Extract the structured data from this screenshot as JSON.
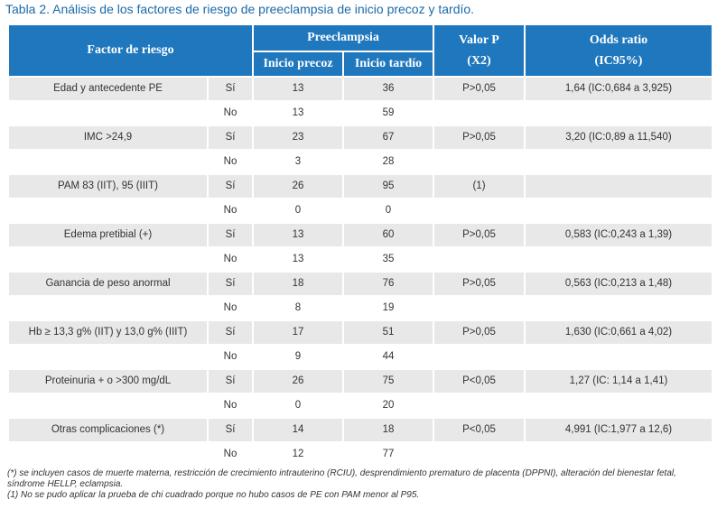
{
  "caption": "Tabla 2. Análisis de los factores de riesgo de preeclampsia de inicio precoz y tardío.",
  "header": {
    "factor": "Factor de riesgo",
    "group": "Preeclampsia",
    "early": "Inicio precoz",
    "late": "Inicio tardío",
    "p_line1": "Valor P",
    "p_line2": "(X2)",
    "or_line1": "Odds ratio",
    "or_line2": "(IC95%)"
  },
  "rows": [
    {
      "factor": "Edad y antecedente PE",
      "yes": {
        "label": "Sí",
        "early": "13",
        "late": "36",
        "p": "P>0,05",
        "or": "1,64 (IC:0,684 a 3,925)"
      },
      "no": {
        "label": "No",
        "early": "13",
        "late": "59"
      }
    },
    {
      "factor": "IMC >24,9",
      "yes": {
        "label": "Sí",
        "early": "23",
        "late": "67",
        "p": "P>0,05",
        "or": "3,20 (IC:0,89 a 11,540)"
      },
      "no": {
        "label": "No",
        "early": "3",
        "late": "28"
      }
    },
    {
      "factor": "PAM  83 (IIT), 95 (IIIT)",
      "yes": {
        "label": "Sí",
        "early": "26",
        "late": "95",
        "p": "(1)",
        "or": ""
      },
      "no": {
        "label": "No",
        "early": "0",
        "late": "0"
      }
    },
    {
      "factor": "Edema pretibial (+)",
      "yes": {
        "label": "Sí",
        "early": "13",
        "late": "60",
        "p": "P>0,05",
        "or": "0,583 (IC:0,243 a 1,39)"
      },
      "no": {
        "label": "No",
        "early": "13",
        "late": "35"
      }
    },
    {
      "factor": "Ganancia de peso anormal",
      "yes": {
        "label": "Sí",
        "early": "18",
        "late": "76",
        "p": "P>0,05",
        "or": "0,563 (IC:0,213 a 1,48)"
      },
      "no": {
        "label": "No",
        "early": "8",
        "late": "19"
      }
    },
    {
      "factor": "Hb ≥ 13,3 g% (IIT) y 13,0 g% (IIIT)",
      "yes": {
        "label": "Sí",
        "early": "17",
        "late": "51",
        "p": "P>0,05",
        "or": "1,630 (IC:0,661 a 4,02)"
      },
      "no": {
        "label": "No",
        "early": "9",
        "late": "44"
      }
    },
    {
      "factor": "Proteinuria + o >300 mg/dL",
      "yes": {
        "label": "Sí",
        "early": "26",
        "late": "75",
        "p": "P<0,05",
        "or": "1,27 (IC: 1,14 a 1,41)"
      },
      "no": {
        "label": "No",
        "early": "0",
        "late": "20"
      }
    },
    {
      "factor": "Otras complicaciones (*)",
      "yes": {
        "label": "Sí",
        "early": "14",
        "late": "18",
        "p": "P<0,05",
        "or": "4,991 (IC:1,977 a 12,6)"
      },
      "no": {
        "label": "No",
        "early": "12",
        "late": "77"
      }
    }
  ],
  "notes": [
    "(*) se incluyen casos de muerte materna, restricción  de crecimiento intrauterino (RCIU), desprendimiento prematuro de placenta (DPPNI), alteración del bienestar fetal, síndrome HELLP, eclampsia.",
    "(1) No se pudo aplicar la prueba de chi cuadrado porque no hubo casos de PE con PAM menor al P95."
  ]
}
